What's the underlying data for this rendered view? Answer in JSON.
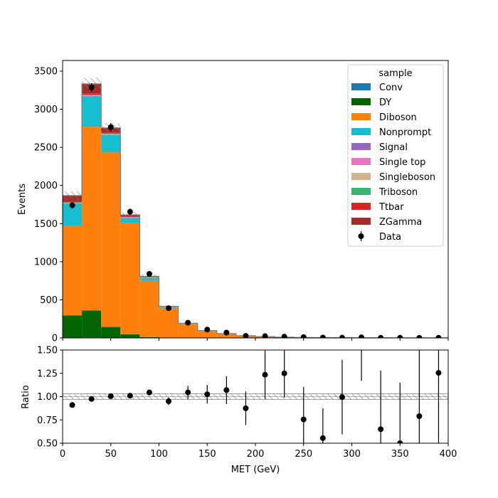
{
  "chart_data": {
    "type": "stacked-histogram-with-ratio",
    "bin_edges": [
      0,
      20,
      40,
      60,
      80,
      100,
      120,
      140,
      160,
      180,
      200,
      220,
      240,
      260,
      280,
      300,
      320,
      340,
      360,
      380,
      400
    ],
    "main_panel": {
      "xlabel": "",
      "ylabel": "Events",
      "ylim": [
        0,
        3640
      ],
      "yticks": [
        "0",
        "500",
        "1000",
        "1500",
        "2000",
        "2500",
        "3000",
        "3500"
      ],
      "ytick_values": [
        0,
        500,
        1000,
        1500,
        2000,
        2500,
        3000,
        3500
      ]
    },
    "ratio_panel": {
      "xlabel": "MET (GeV)",
      "ylabel": "Ratio",
      "ylim": [
        0.5,
        1.5
      ],
      "yticks": [
        "0.50",
        "0.75",
        "1.00",
        "1.25",
        "1.50"
      ],
      "ytick_values": [
        0.5,
        0.75,
        1.0,
        1.25,
        1.5
      ],
      "band_halfwidth": 0.03
    },
    "xlim": [
      0,
      400
    ],
    "xticks": [
      "0",
      "50",
      "100",
      "150",
      "200",
      "250",
      "300",
      "350",
      "400"
    ],
    "xtick_values": [
      0,
      50,
      100,
      150,
      200,
      250,
      300,
      350,
      400
    ],
    "legend": {
      "title": "sample",
      "placement": "top-right"
    },
    "series": [
      {
        "name": "Conv",
        "color": "#1f77b4",
        "values": [
          5,
          6,
          4,
          3,
          2,
          1,
          1,
          0,
          0,
          0,
          0,
          0,
          0,
          0,
          0,
          0,
          0,
          0,
          0,
          0
        ]
      },
      {
        "name": "DY",
        "color": "#006400",
        "values": [
          290,
          355,
          140,
          45,
          8,
          3,
          1,
          0,
          0,
          0,
          0,
          0,
          0,
          0,
          0,
          0,
          0,
          0,
          0,
          0
        ]
      },
      {
        "name": "Diboson",
        "color": "#ff7f0e",
        "values": [
          1180,
          2410,
          2290,
          1460,
          740,
          380,
          175,
          90,
          52,
          26,
          15,
          10,
          6,
          4,
          3,
          2,
          2,
          1,
          1,
          1
        ]
      },
      {
        "name": "Nonprompt",
        "color": "#17becf",
        "values": [
          290,
          400,
          230,
          65,
          35,
          15,
          6,
          3,
          2,
          1,
          1,
          0,
          0,
          0,
          0,
          0,
          0,
          0,
          0,
          0
        ]
      },
      {
        "name": "Signal",
        "color": "#9467bd",
        "values": [
          2,
          3,
          3,
          2,
          1,
          1,
          0,
          0,
          0,
          0,
          0,
          0,
          0,
          0,
          0,
          0,
          0,
          0,
          0,
          0
        ]
      },
      {
        "name": "Single top",
        "color": "#e377c2",
        "values": [
          3,
          4,
          4,
          3,
          2,
          1,
          1,
          0,
          0,
          0,
          0,
          0,
          0,
          0,
          0,
          0,
          0,
          0,
          0,
          0
        ]
      },
      {
        "name": "Singleboson",
        "color": "#d2b48c",
        "values": [
          5,
          6,
          5,
          4,
          3,
          3,
          2,
          1,
          1,
          1,
          0,
          0,
          0,
          0,
          0,
          0,
          0,
          0,
          0,
          0
        ]
      },
      {
        "name": "Triboson",
        "color": "#3cb371",
        "values": [
          3,
          4,
          4,
          3,
          3,
          2,
          2,
          1,
          1,
          1,
          1,
          0,
          0,
          0,
          0,
          0,
          0,
          0,
          0,
          0
        ]
      },
      {
        "name": "Ttbar",
        "color": "#d62728",
        "values": [
          15,
          20,
          15,
          10,
          6,
          4,
          2,
          1,
          1,
          0,
          0,
          0,
          0,
          0,
          0,
          0,
          0,
          0,
          0,
          0
        ]
      },
      {
        "name": "ZGamma",
        "color": "#a52a2a",
        "values": [
          75,
          125,
          60,
          20,
          8,
          4,
          2,
          1,
          0,
          0,
          0,
          0,
          0,
          0,
          0,
          0,
          0,
          0,
          0,
          0
        ]
      }
    ],
    "mc_uncertainty": [
      55,
      80,
      60,
      40,
      25,
      15,
      10,
      8,
      5,
      3,
      2,
      2,
      1,
      1,
      1,
      1,
      1,
      1,
      1,
      1
    ],
    "data": {
      "name": "Data",
      "values": [
        1740,
        3285,
        2765,
        1655,
        840,
        390,
        200,
        110,
        70,
        27,
        23,
        17,
        10,
        5,
        3,
        8,
        2,
        2,
        1,
        2
      ],
      "errors": [
        42,
        57,
        53,
        41,
        29,
        20,
        14,
        10,
        8,
        5,
        5,
        4,
        3,
        2,
        2,
        3,
        1,
        1,
        1,
        1
      ]
    },
    "ratio": {
      "values": [
        0.91,
        0.975,
        1.005,
        1.01,
        1.045,
        0.95,
        1.045,
        1.025,
        1.07,
        0.875,
        1.235,
        1.25,
        0.755,
        0.555,
        0.995,
        1.6,
        0.65,
        0.5,
        0.79,
        1.255
      ],
      "errors": [
        0.02,
        0.02,
        0.02,
        0.03,
        0.03,
        0.04,
        0.07,
        0.1,
        0.15,
        0.18,
        0.26,
        0.26,
        0.35,
        0.32,
        0.4,
        0.43,
        0.63,
        0.65,
        0.8,
        0.8
      ]
    }
  }
}
